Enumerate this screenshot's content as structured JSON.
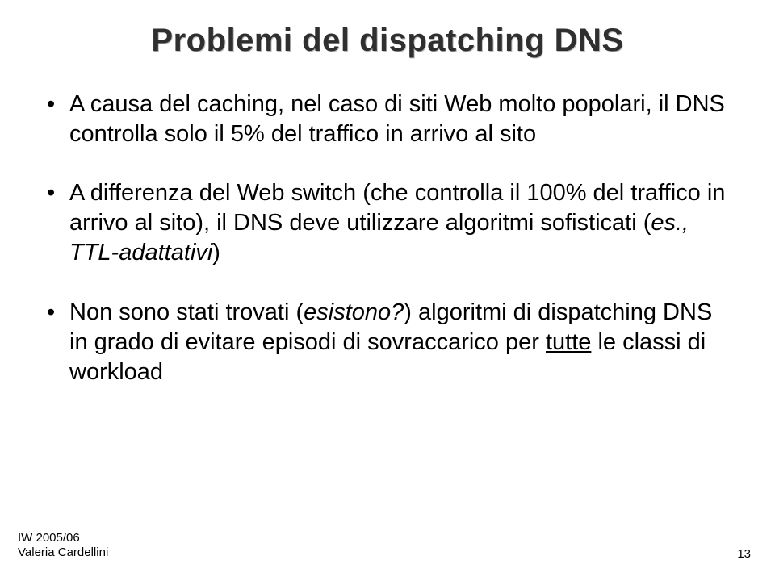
{
  "title": "Problemi del dispatching DNS",
  "bullets": {
    "b1": "A causa del caching, nel caso di siti Web molto popolari, il DNS controlla solo il 5% del traffico in arrivo al sito",
    "b2_pre": "A differenza del Web switch (che controlla il 100% del traffico in arrivo al sito), il DNS deve utilizzare algoritmi sofisticati (",
    "b2_italic": "es., TTL-adattativi",
    "b2_post": ")",
    "b3_pre": "Non sono stati trovati (",
    "b3_italic": "esistono?",
    "b3_mid": ") algoritmi di dispatching DNS in grado di evitare episodi di sovraccarico per ",
    "b3_underline": "tutte",
    "b3_post": " le classi di workload"
  },
  "footer": {
    "line1": "IW 2005/06",
    "line2": "Valeria Cardellini",
    "page": "13"
  }
}
